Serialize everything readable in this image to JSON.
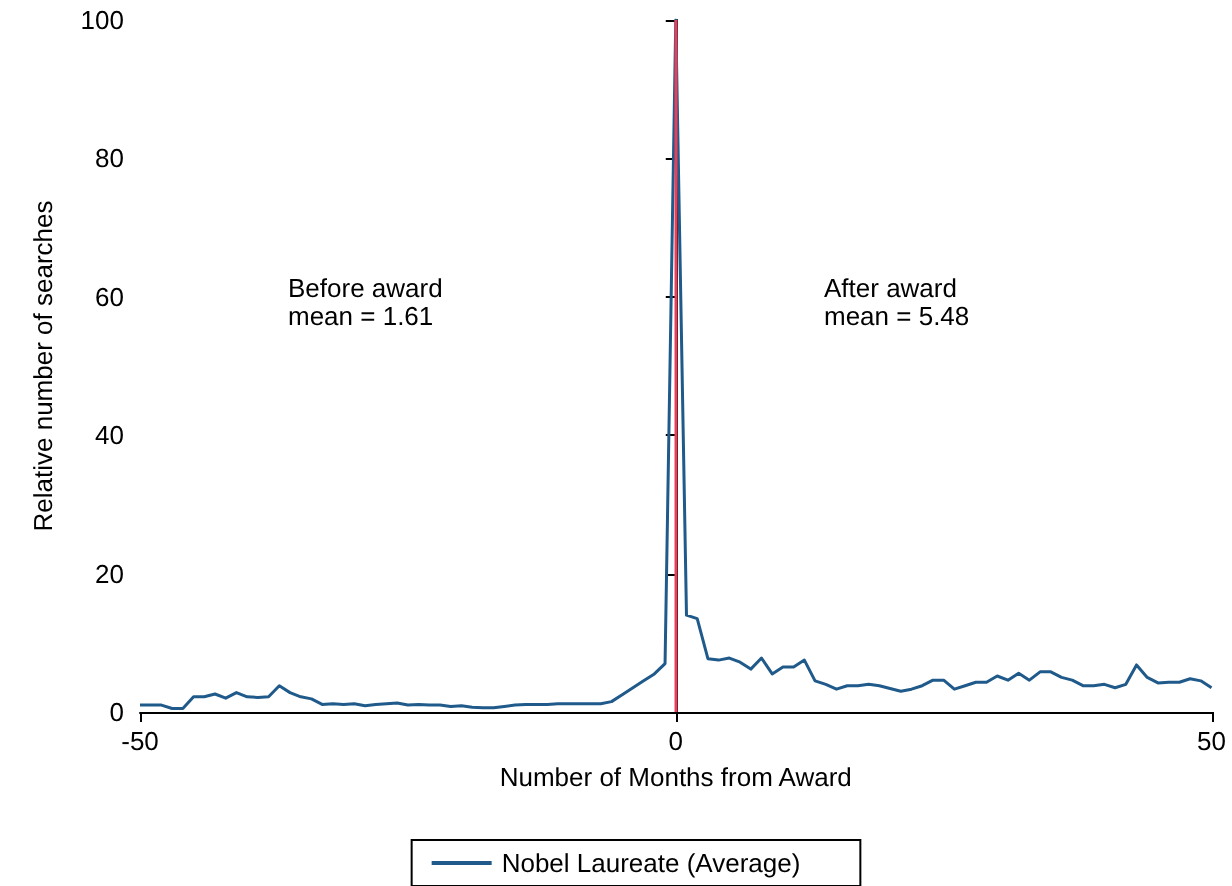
{
  "chart_data": {
    "type": "line",
    "xlabel": "Number of Months from Award",
    "ylabel": "Relative number of searches",
    "x": [
      -50,
      -49,
      -48,
      -47,
      -46,
      -45,
      -44,
      -43,
      -42,
      -41,
      -40,
      -39,
      -38,
      -37,
      -36,
      -35,
      -34,
      -33,
      -32,
      -31,
      -30,
      -29,
      -28,
      -27,
      -26,
      -25,
      -24,
      -23,
      -22,
      -21,
      -20,
      -19,
      -18,
      -17,
      -16,
      -15,
      -14,
      -13,
      -12,
      -11,
      -10,
      -9,
      -8,
      -7,
      -6,
      -5,
      -4,
      -3,
      -2,
      -1,
      0,
      1,
      2,
      3,
      4,
      5,
      6,
      7,
      8,
      9,
      10,
      11,
      12,
      13,
      14,
      15,
      16,
      17,
      18,
      19,
      20,
      21,
      22,
      23,
      24,
      25,
      26,
      27,
      28,
      29,
      30,
      31,
      32,
      33,
      34,
      35,
      36,
      37,
      38,
      39,
      40,
      41,
      42,
      43,
      44,
      45,
      46,
      47,
      48,
      49,
      50
    ],
    "series": [
      {
        "name": "Nobel Laureate (Average)",
        "color": "#1f5a8a",
        "values": [
          1.0,
          1.0,
          1.0,
          0.5,
          0.5,
          2.2,
          2.2,
          2.6,
          2.0,
          2.8,
          2.2,
          2.1,
          2.2,
          3.8,
          2.8,
          2.2,
          1.9,
          1.1,
          1.2,
          1.1,
          1.2,
          0.9,
          1.1,
          1.2,
          1.3,
          1.0,
          1.1,
          1.0,
          1.0,
          0.8,
          0.9,
          0.7,
          0.6,
          0.6,
          0.8,
          1.0,
          1.1,
          1.1,
          1.1,
          1.2,
          1.2,
          1.2,
          1.2,
          1.2,
          1.5,
          2.5,
          3.5,
          4.5,
          5.5,
          7.0,
          100,
          14,
          13.5,
          7.7,
          7.5,
          7.8,
          7.2,
          6.2,
          7.8,
          5.5,
          6.5,
          6.5,
          7.5,
          4.5,
          4,
          3.3,
          3.8,
          3.8,
          4,
          3.8,
          3.4,
          3,
          3.3,
          3.8,
          4.6,
          4.6,
          3.3,
          3.8,
          4.3,
          4.3,
          5.2,
          4.6,
          5.6,
          4.6,
          5.8,
          5.8,
          5,
          4.6,
          3.8,
          3.8,
          4,
          3.5,
          4,
          6.8,
          5,
          4.2,
          4.3,
          4.3,
          4.8,
          4.5,
          3.5
        ]
      }
    ],
    "xlim": [
      -50,
      50
    ],
    "xticks": [
      -50,
      0,
      50
    ],
    "ylim": [
      0,
      100
    ],
    "yticks": [
      0,
      20,
      40,
      60,
      80,
      100
    ],
    "grid": false,
    "legend": "bottom",
    "marker": "none",
    "line_style": "solid",
    "ref_lines": [
      {
        "axis": "x",
        "value": 0,
        "color": "#e8405a"
      }
    ],
    "annotations": [
      "Before award\nmean = 1.61",
      "After award\nmean = 5.48"
    ]
  }
}
